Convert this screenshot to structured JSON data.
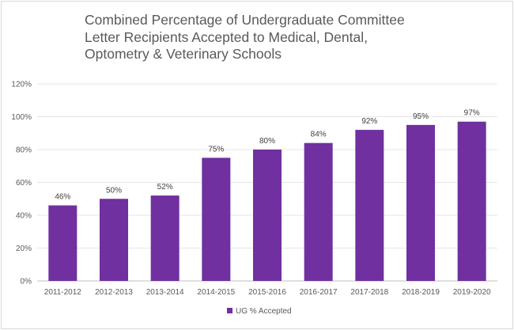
{
  "chart_data": {
    "type": "bar",
    "title": "Combined Percentage of Undergraduate Committee Letter Recipients Accepted to Medical, Dental, Optometry & Veterinary Schools",
    "categories": [
      "2011-2012",
      "2012-2013",
      "2013-2014",
      "2014-2015",
      "2015-2016",
      "2016-2017",
      "2017-2018",
      "2018-2019",
      "2019-2020"
    ],
    "series": [
      {
        "name": "UG % Accepted",
        "values": [
          46,
          50,
          52,
          75,
          80,
          84,
          92,
          95,
          97
        ],
        "data_labels": [
          "46%",
          "50%",
          "52%",
          "75%",
          "80%",
          "84%",
          "92%",
          "95%",
          "97%"
        ]
      }
    ],
    "ylim": [
      0,
      120
    ],
    "yticks": [
      0,
      20,
      40,
      60,
      80,
      100,
      120
    ],
    "ytick_labels": [
      "0%",
      "20%",
      "40%",
      "60%",
      "80%",
      "100%",
      "120%"
    ],
    "xlabel": "",
    "ylabel": "",
    "grid": true,
    "legend_position": "bottom",
    "colors": {
      "bar": "#7030a0",
      "grid": "#e6e6e6",
      "text": "#595959"
    }
  }
}
